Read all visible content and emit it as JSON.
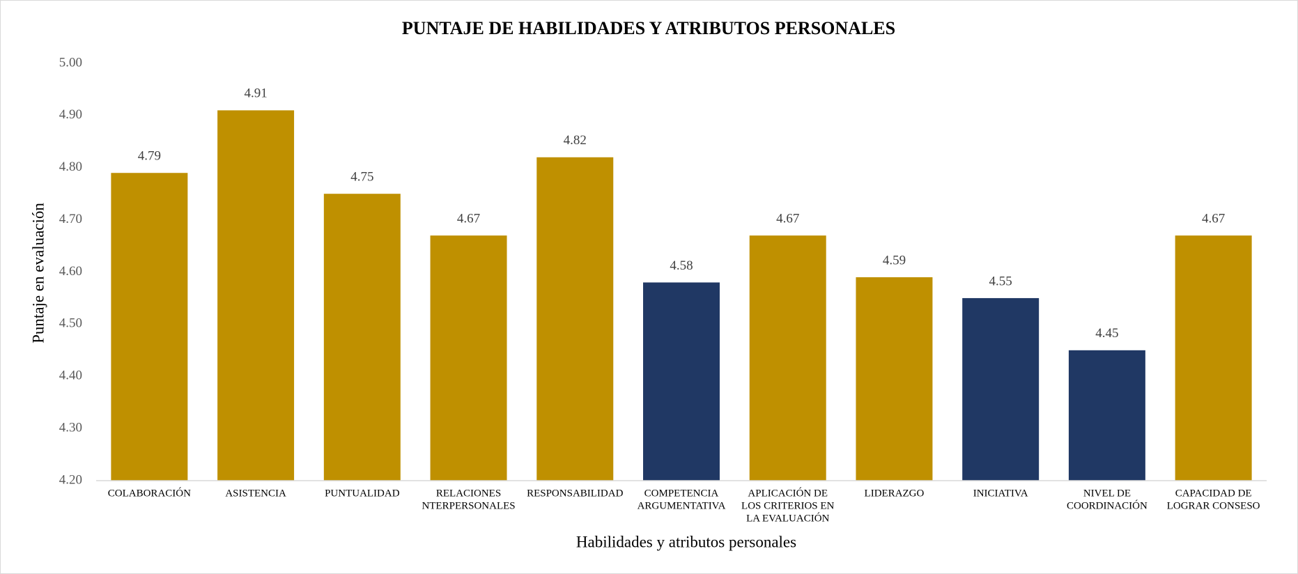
{
  "chart_data": {
    "type": "bar",
    "title": "PUNTAJE DE HABILIDADES Y ATRIBUTOS PERSONALES",
    "x_label": "Habilidades y atributos personales",
    "y_label": "Puntaje en evaluación",
    "categories": [
      [
        "COLABORACIÓN"
      ],
      [
        "ASISTENCIA"
      ],
      [
        "PUNTUALIDAD"
      ],
      [
        "RELACIONES",
        "NTERPERSONALES"
      ],
      [
        "RESPONSABILIDAD"
      ],
      [
        "COMPETENCIA",
        "ARGUMENTATIVA"
      ],
      [
        "APLICACIÓN DE",
        "LOS CRITERIOS EN",
        "LA EVALUACIÓN"
      ],
      [
        "LIDERAZGO"
      ],
      [
        "INICIATIVA"
      ],
      [
        "NIVEL DE",
        "COORDINACIÓN"
      ],
      [
        "CAPACIDAD DE",
        "LOGRAR CONSESO"
      ]
    ],
    "values": [
      4.79,
      4.91,
      4.75,
      4.67,
      4.82,
      4.58,
      4.67,
      4.59,
      4.55,
      4.45,
      4.67
    ],
    "colors": [
      "#bf9000",
      "#bf9000",
      "#bf9000",
      "#bf9000",
      "#bf9000",
      "#203864",
      "#bf9000",
      "#bf9000",
      "#203864",
      "#203864",
      "#bf9000"
    ],
    "ylim": [
      4.2,
      5.0
    ],
    "yticks": [
      {
        "value": 4.2,
        "label": "4.20"
      },
      {
        "value": 4.3,
        "label": "4.30"
      },
      {
        "value": 4.4,
        "label": "4.40"
      },
      {
        "value": 4.5,
        "label": "4.50"
      },
      {
        "value": 4.6,
        "label": "4.60"
      },
      {
        "value": 4.7,
        "label": "4.70"
      },
      {
        "value": 4.8,
        "label": "4.80"
      },
      {
        "value": 4.9,
        "label": "4.90"
      },
      {
        "value": 5.0,
        "label": "5.00"
      }
    ],
    "grid": false
  }
}
